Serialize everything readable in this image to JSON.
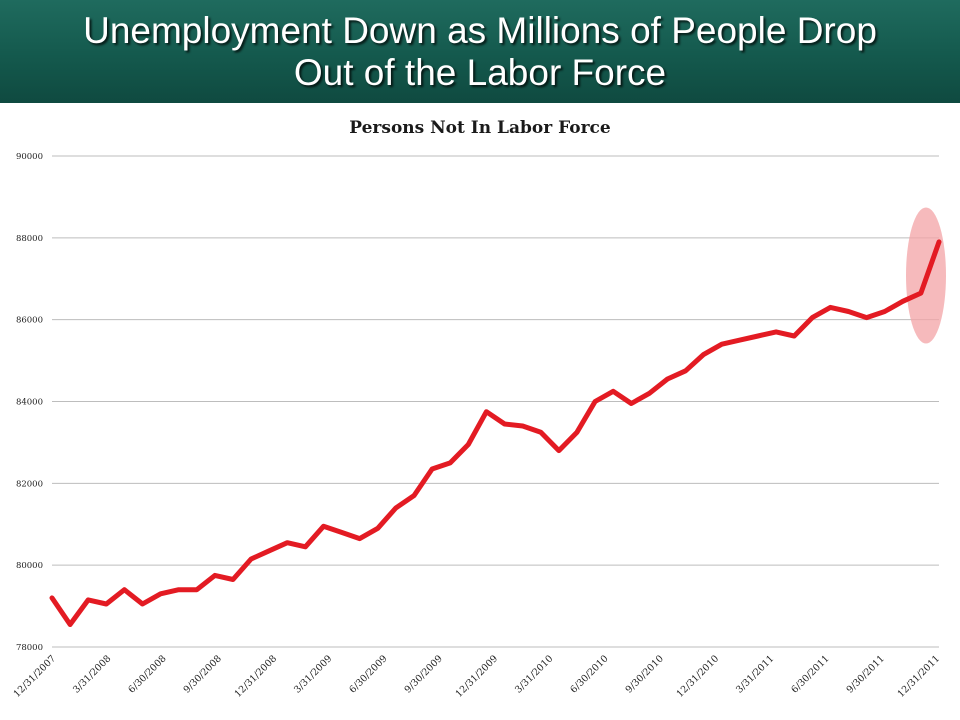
{
  "slide": {
    "title_line1": "Unemployment Down as Millions of People Drop",
    "title_line2": "Out of the Labor Force"
  },
  "colors": {
    "banner": "#14594d",
    "series": "#e31b23",
    "highlight": "#f3a3a6",
    "grid": "#bdbdbd"
  },
  "chart_data": {
    "type": "line",
    "title": "Persons Not In Labor Force",
    "xlabel": "",
    "ylabel": "",
    "ylim": [
      78000,
      90000
    ],
    "yticks": [
      78000,
      80000,
      82000,
      84000,
      86000,
      88000,
      90000
    ],
    "xtick_labels": [
      "12/31/2007",
      "3/31/2008",
      "6/30/2008",
      "9/30/2008",
      "12/31/2008",
      "3/31/2009",
      "6/30/2009",
      "9/30/2009",
      "12/31/2009",
      "3/31/2010",
      "6/30/2010",
      "9/30/2010",
      "12/31/2010",
      "3/31/2011",
      "6/30/2011",
      "9/30/2011",
      "12/31/2011"
    ],
    "grid": true,
    "legend": "none",
    "annotation": "highlighted ellipse around the final jump in the series",
    "series": [
      {
        "values": [
          79200,
          78550,
          79150,
          79050,
          79400,
          79050,
          79300,
          79400,
          79400,
          79750,
          79650,
          80150,
          80350,
          80550,
          80450,
          80950,
          80800,
          80650,
          80900,
          81400,
          81700,
          82350,
          82500,
          82950,
          83750,
          83450,
          83400,
          83250,
          82800,
          83250,
          84000,
          84250,
          83950,
          84200,
          84550,
          84750,
          85150,
          85400,
          85500,
          85600,
          85700,
          85600,
          86050,
          86300,
          86200,
          86050,
          86200,
          86450,
          86650,
          87900
        ]
      }
    ]
  }
}
